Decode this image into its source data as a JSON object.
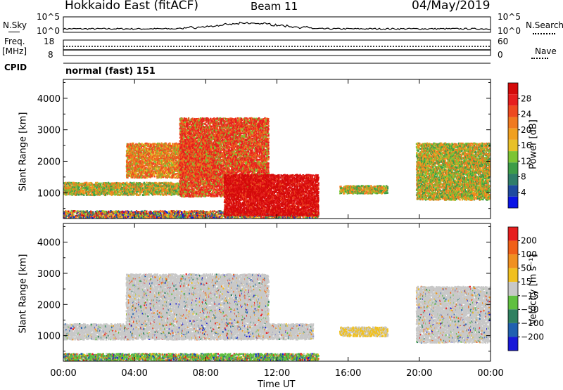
{
  "header": {
    "radar": "Hokkaido East (fitACF)",
    "beam": "Beam 11",
    "date": "04/May/2019"
  },
  "strips": {
    "nsky": {
      "label": "N.Sky",
      "left_ticks": [
        "10^5",
        "10^0"
      ],
      "right_ticks": [
        "10^5",
        "10^0"
      ],
      "right_label": "N.Search"
    },
    "freq": {
      "label_top": "Freq.",
      "label_unit": "[MHz]",
      "left_ticks": [
        "18",
        "8"
      ],
      "right_ticks": [
        "60",
        "0"
      ],
      "right_label": "Nave"
    },
    "cpid": {
      "label": "CPID",
      "value": "normal (fast) 151"
    }
  },
  "chart_data": [
    {
      "type": "heatmap",
      "panel": "power",
      "ylabel": "Slant Range [km]",
      "yticks": [
        1000,
        2000,
        3000,
        4000
      ],
      "ylim": [
        180,
        4600
      ],
      "xlim": [
        0,
        24
      ],
      "colorbar": {
        "label": "Power [dB]",
        "ticks": [
          "4",
          "8",
          "12",
          "16",
          "20",
          "24",
          "28"
        ],
        "colors": [
          "#0a14e6",
          "#1e4aa0",
          "#2f7d6a",
          "#3d9c48",
          "#7cc434",
          "#e8c028",
          "#f0a020",
          "#f07a20",
          "#ee4a20",
          "#e61e1e",
          "#d40a0a"
        ]
      },
      "regions": [
        {
          "t0": 0.0,
          "t1": 14.3,
          "r0": 180,
          "r1": 450,
          "level": "mixed"
        },
        {
          "t0": 0.0,
          "t1": 7.0,
          "r0": 950,
          "r1": 1350,
          "level": "orange-green"
        },
        {
          "t0": 3.5,
          "t1": 8.5,
          "r0": 1500,
          "r1": 2600,
          "level": "orange"
        },
        {
          "t0": 6.5,
          "t1": 11.5,
          "r0": 900,
          "r1": 3400,
          "level": "red-orange"
        },
        {
          "t0": 9.0,
          "t1": 14.3,
          "r0": 300,
          "r1": 1600,
          "level": "red"
        },
        {
          "t0": 15.5,
          "t1": 18.2,
          "r0": 1000,
          "r1": 1250,
          "level": "orange-green"
        },
        {
          "t0": 19.8,
          "t1": 24.0,
          "r0": 800,
          "r1": 2600,
          "level": "orange-green"
        }
      ]
    },
    {
      "type": "heatmap",
      "panel": "velocity",
      "ylabel": "Slant Range [km]",
      "yticks": [
        1000,
        2000,
        3000,
        4000
      ],
      "ylim": [
        180,
        4600
      ],
      "xlim": [
        0,
        24
      ],
      "colorbar": {
        "label": "Velocity [m s⁻¹]",
        "ticks": [
          "200",
          "100",
          "50",
          "15",
          "−15",
          "−50",
          "−100",
          "−200"
        ],
        "colors": [
          "#1818d8",
          "#2060b0",
          "#2f8060",
          "#60c040",
          "#c8c8c8",
          "#f0c020",
          "#f09020",
          "#f06018",
          "#e61e1e"
        ]
      },
      "regions": [
        {
          "t0": 0.0,
          "t1": 14.3,
          "r0": 180,
          "r1": 450,
          "level": "mixed"
        },
        {
          "t0": 0.0,
          "t1": 14.0,
          "r0": 900,
          "r1": 1400,
          "level": "gray"
        },
        {
          "t0": 3.5,
          "t1": 11.5,
          "r0": 1400,
          "r1": 3000,
          "level": "gray"
        },
        {
          "t0": 15.5,
          "t1": 18.2,
          "r0": 1000,
          "r1": 1300,
          "level": "orange-gray"
        },
        {
          "t0": 19.8,
          "t1": 24.0,
          "r0": 800,
          "r1": 2600,
          "level": "gray"
        }
      ]
    }
  ],
  "xaxis": {
    "ticks": [
      "00:00",
      "04:00",
      "08:00",
      "12:00",
      "16:00",
      "20:00",
      "00:00"
    ],
    "label": "Time UT"
  }
}
